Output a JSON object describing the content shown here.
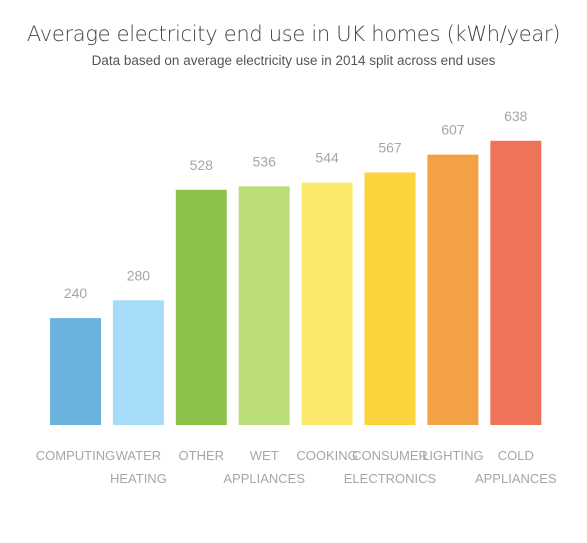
{
  "chart_data": {
    "type": "bar",
    "title": "Average electricity end use in UK homes (kWh/year)",
    "subtitle": "Data based on average electricity use in 2014 split across end uses",
    "categories": [
      [
        "COMPUTING"
      ],
      [
        "WATER",
        "HEATING"
      ],
      [
        "OTHER"
      ],
      [
        "WET",
        "APPLIANCES"
      ],
      [
        "COOKING"
      ],
      [
        "CONSUMER",
        "ELECTRONICS"
      ],
      [
        "LIGHTING"
      ],
      [
        "COLD",
        "APPLIANCES"
      ]
    ],
    "values": [
      240,
      280,
      528,
      536,
      544,
      567,
      607,
      638
    ],
    "colors": [
      "#69b3dc",
      "#a6dcf7",
      "#8dc14b",
      "#bcde7a",
      "#fce86a",
      "#fbd43c",
      "#f4a044",
      "#ee7358"
    ],
    "ylim": [
      0,
      700
    ],
    "grid": false,
    "legend": "none"
  }
}
